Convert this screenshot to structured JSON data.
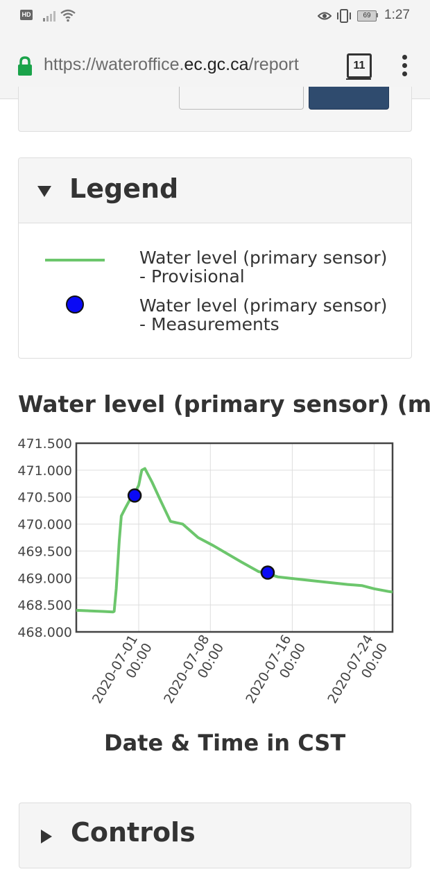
{
  "status_bar": {
    "network_badge": "HD",
    "battery_level": "69",
    "time": "1:27"
  },
  "browser": {
    "url_prefix": "https://wateroffice.",
    "url_domain": "ec.gc.ca",
    "url_suffix": "/report",
    "tab_count": "11"
  },
  "legend": {
    "title": "Legend",
    "items": [
      {
        "label": "Water level (primary sensor) - Provisional",
        "color": "#6cc66c",
        "icon": "line"
      },
      {
        "label": "Water level (primary sensor) - Measurements",
        "color": "#0a0af5",
        "icon": "dot"
      }
    ]
  },
  "chart_data": {
    "type": "line",
    "title": "Water level (primary sensor) (m)",
    "xlabel": "Date & Time in CST",
    "ylabel": "",
    "ylim": [
      468.0,
      471.5
    ],
    "y_ticks": [
      "471.500",
      "471.000",
      "470.500",
      "470.000",
      "469.500",
      "469.000",
      "468.500",
      "468.000"
    ],
    "x_ticks": [
      {
        "date": "2020-07-01",
        "time": "00:00",
        "day": 0
      },
      {
        "date": "2020-07-08",
        "time": "00:00",
        "day": 7
      },
      {
        "date": "2020-07-16",
        "time": "00:00",
        "day": 15
      },
      {
        "date": "2020-07-24",
        "time": "00:00",
        "day": 23
      }
    ],
    "xlim_days": [
      -6.1,
      24.8
    ],
    "grid": true,
    "series": [
      {
        "name": "Water level (primary sensor) - Provisional",
        "color": "#6cc66c",
        "points": [
          [
            -6.1,
            468.4
          ],
          [
            -3.5,
            468.38
          ],
          [
            -2.5,
            468.37
          ],
          [
            -2.4,
            468.38
          ],
          [
            -2.2,
            468.8
          ],
          [
            -1.9,
            469.7
          ],
          [
            -1.7,
            470.15
          ],
          [
            -1.3,
            470.3
          ],
          [
            -0.9,
            470.44
          ],
          [
            -0.5,
            470.53
          ],
          [
            0.0,
            470.72
          ],
          [
            0.3,
            471.0
          ],
          [
            0.6,
            471.03
          ],
          [
            1.3,
            470.78
          ],
          [
            2.1,
            470.45
          ],
          [
            3.1,
            470.05
          ],
          [
            4.3,
            470.0
          ],
          [
            5.8,
            469.75
          ],
          [
            7.3,
            469.6
          ],
          [
            10.0,
            469.3
          ],
          [
            11.7,
            469.12
          ],
          [
            12.6,
            469.08
          ],
          [
            13.6,
            469.02
          ],
          [
            17.0,
            468.95
          ],
          [
            20.4,
            468.88
          ],
          [
            21.8,
            468.86
          ],
          [
            23.0,
            468.8
          ],
          [
            24.4,
            468.75
          ],
          [
            24.8,
            468.74
          ]
        ]
      },
      {
        "name": "Water level (primary sensor) - Measurements",
        "color": "#0a0af5",
        "points": [
          [
            -0.4,
            470.53
          ],
          [
            12.6,
            469.1
          ]
        ]
      }
    ]
  },
  "controls": {
    "title": "Controls"
  }
}
